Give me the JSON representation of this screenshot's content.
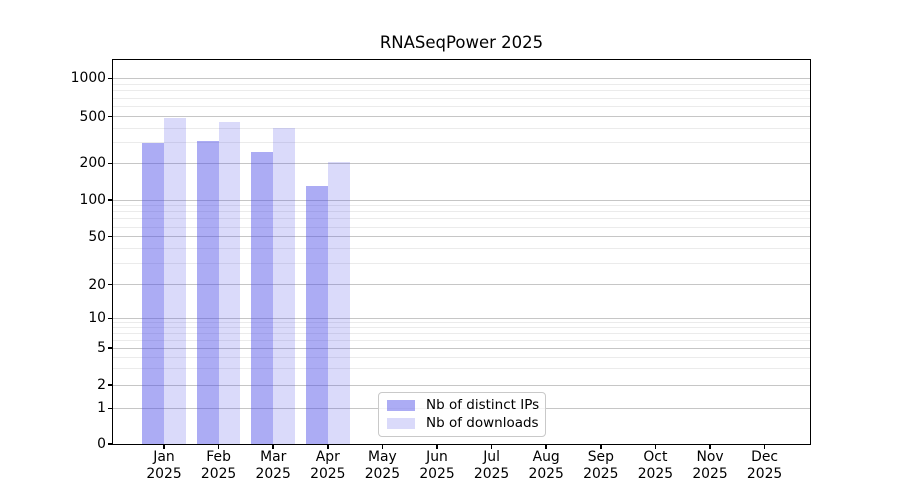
{
  "title": "RNASeqPower 2025",
  "chart_data": {
    "type": "bar",
    "title": "RNASeqPower 2025",
    "categories": [
      "Jan 2025",
      "Feb 2025",
      "Mar 2025",
      "Apr 2025",
      "May 2025",
      "Jun 2025",
      "Jul 2025",
      "Aug 2025",
      "Sep 2025",
      "Oct 2025",
      "Nov 2025",
      "Dec 2025"
    ],
    "series": [
      {
        "name": "Nb of distinct IPs",
        "color": "rgba(70,70,230,0.45)",
        "values": [
          300,
          310,
          250,
          130,
          null,
          null,
          null,
          null,
          null,
          null,
          null,
          null
        ]
      },
      {
        "name": "Nb of downloads",
        "color": "rgba(70,70,230,0.20)",
        "values": [
          490,
          450,
          400,
          205,
          null,
          null,
          null,
          null,
          null,
          null,
          null,
          null
        ]
      }
    ],
    "yscale": "symlog",
    "yticks": [
      0,
      1,
      2,
      5,
      10,
      20,
      50,
      100,
      200,
      500,
      1000
    ],
    "ylim": [
      0,
      1350
    ],
    "xlabel": "",
    "ylabel": "",
    "grid": "horizontal major and minor gridlines",
    "legend_position": "bottom-center inside plot"
  },
  "colors": {
    "background": "#ffffff",
    "axis": "#000000",
    "grid_major": "#c6c6c6",
    "grid_minor": "#ebebeb",
    "bar_dark": "rgba(70,70,230,0.45)",
    "bar_light": "rgba(70,70,230,0.20)"
  }
}
